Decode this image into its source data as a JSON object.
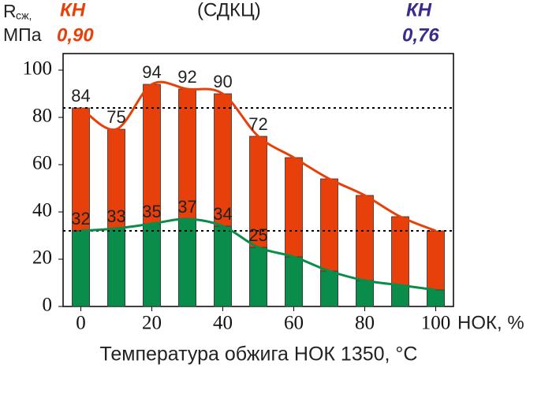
{
  "chart_data": {
    "type": "bar",
    "header": {
      "r_symbol": "R",
      "r_subscript": "сж,",
      "unit": "МПа",
      "left_kh": "КН",
      "left_kh_value": "0,90",
      "center": "(СДКЦ)",
      "right_kh": "КН",
      "right_kh_value": "0,76"
    },
    "xlabel": "Температура обжига НОК 1350, °C",
    "x_unit": "НОК, %",
    "x": [
      0,
      10,
      20,
      30,
      40,
      50,
      60,
      70,
      80,
      90,
      100
    ],
    "series": [
      {
        "color": "#e8400a",
        "values": [
          84,
          75,
          94,
          92,
          90,
          72,
          63,
          54,
          47,
          38,
          32
        ],
        "value_labels": [
          "84",
          "75",
          "94",
          "92",
          "90",
          "72",
          null,
          null,
          null,
          null,
          null
        ]
      },
      {
        "color": "#0a8c4a",
        "values": [
          32,
          33,
          35,
          37,
          34,
          25,
          21,
          15,
          11,
          9,
          7
        ],
        "value_labels": [
          "32",
          "33",
          "35",
          "37",
          "34",
          "25",
          null,
          null,
          null,
          null,
          null
        ]
      }
    ],
    "reference_lines": [
      84,
      32
    ],
    "xlim": [
      -5,
      105
    ],
    "xticks": [
      0,
      20,
      40,
      60,
      80,
      100
    ],
    "ylim": [
      0,
      107
    ],
    "yticks": [
      0,
      20,
      40,
      60,
      80,
      100
    ]
  }
}
